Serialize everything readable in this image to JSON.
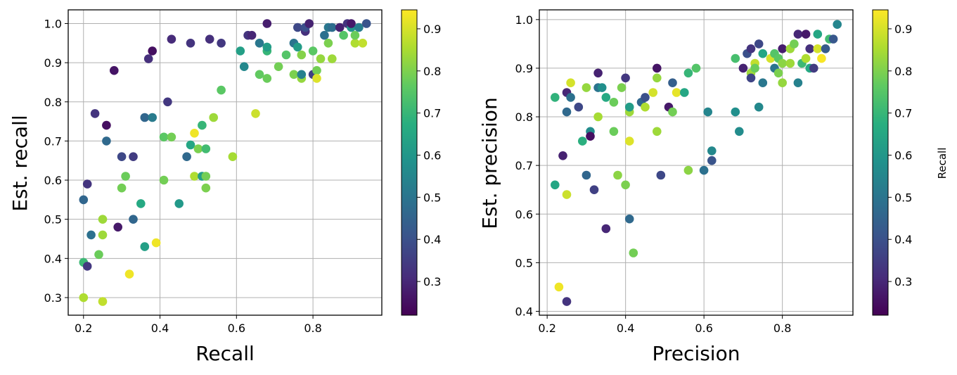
{
  "colormap": "viridis",
  "chart_data": [
    {
      "type": "scatter",
      "xlabel": "Recall",
      "ylabel": "Est. recall",
      "xlim": [
        0.16,
        0.98
      ],
      "ylim": [
        0.255,
        1.035
      ],
      "xticks": [
        "0.2",
        "0.4",
        "0.6",
        "0.8"
      ],
      "yticks": [
        "0.3",
        "0.4",
        "0.5",
        "0.6",
        "0.7",
        "0.8",
        "0.9",
        "1.0"
      ],
      "grid": true,
      "color_by": "Recall",
      "colorbar_ticks": [
        "0.3",
        "0.4",
        "0.5",
        "0.6",
        "0.7",
        "0.8",
        "0.9"
      ],
      "colorbar_range": [
        0.22,
        0.945
      ],
      "colorbar_label": "",
      "points": [
        [
          0.2,
          0.3,
          0.86
        ],
        [
          0.2,
          0.39,
          0.71
        ],
        [
          0.2,
          0.55,
          0.46
        ],
        [
          0.21,
          0.38,
          0.34
        ],
        [
          0.21,
          0.59,
          0.33
        ],
        [
          0.22,
          0.46,
          0.49
        ],
        [
          0.23,
          0.77,
          0.33
        ],
        [
          0.24,
          0.41,
          0.78
        ],
        [
          0.25,
          0.5,
          0.84
        ],
        [
          0.25,
          0.46,
          0.84
        ],
        [
          0.25,
          0.29,
          0.88
        ],
        [
          0.26,
          0.74,
          0.25
        ],
        [
          0.26,
          0.7,
          0.47
        ],
        [
          0.28,
          0.88,
          0.26
        ],
        [
          0.29,
          0.48,
          0.27
        ],
        [
          0.3,
          0.66,
          0.38
        ],
        [
          0.3,
          0.58,
          0.79
        ],
        [
          0.31,
          0.61,
          0.78
        ],
        [
          0.32,
          0.36,
          0.93
        ],
        [
          0.33,
          0.66,
          0.35
        ],
        [
          0.33,
          0.5,
          0.46
        ],
        [
          0.35,
          0.54,
          0.66
        ],
        [
          0.36,
          0.43,
          0.63
        ],
        [
          0.36,
          0.76,
          0.46
        ],
        [
          0.37,
          0.91,
          0.32
        ],
        [
          0.38,
          0.76,
          0.52
        ],
        [
          0.38,
          0.93,
          0.25
        ],
        [
          0.39,
          0.44,
          0.93
        ],
        [
          0.41,
          0.6,
          0.79
        ],
        [
          0.41,
          0.71,
          0.76
        ],
        [
          0.42,
          0.8,
          0.34
        ],
        [
          0.43,
          0.96,
          0.31
        ],
        [
          0.43,
          0.71,
          0.79
        ],
        [
          0.45,
          0.54,
          0.61
        ],
        [
          0.47,
          0.66,
          0.47
        ],
        [
          0.48,
          0.69,
          0.65
        ],
        [
          0.48,
          0.95,
          0.33
        ],
        [
          0.49,
          0.61,
          0.86
        ],
        [
          0.49,
          0.72,
          0.93
        ],
        [
          0.5,
          0.68,
          0.8
        ],
        [
          0.51,
          0.61,
          0.63
        ],
        [
          0.51,
          0.74,
          0.7
        ],
        [
          0.52,
          0.68,
          0.72
        ],
        [
          0.52,
          0.61,
          0.79
        ],
        [
          0.52,
          0.58,
          0.8
        ],
        [
          0.53,
          0.96,
          0.32
        ],
        [
          0.54,
          0.76,
          0.84
        ],
        [
          0.56,
          0.95,
          0.34
        ],
        [
          0.56,
          0.83,
          0.76
        ],
        [
          0.59,
          0.66,
          0.85
        ],
        [
          0.61,
          0.93,
          0.63
        ],
        [
          0.62,
          0.89,
          0.56
        ],
        [
          0.63,
          0.97,
          0.33
        ],
        [
          0.64,
          0.97,
          0.3
        ],
        [
          0.65,
          0.77,
          0.89
        ],
        [
          0.66,
          0.95,
          0.51
        ],
        [
          0.66,
          0.87,
          0.77
        ],
        [
          0.68,
          1.0,
          0.28
        ],
        [
          0.68,
          0.93,
          0.7
        ],
        [
          0.68,
          0.94,
          0.62
        ],
        [
          0.68,
          0.86,
          0.78
        ],
        [
          0.71,
          0.89,
          0.79
        ],
        [
          0.73,
          0.92,
          0.75
        ],
        [
          0.75,
          0.87,
          0.8
        ],
        [
          0.75,
          0.95,
          0.5
        ],
        [
          0.76,
          0.99,
          0.38
        ],
        [
          0.76,
          0.94,
          0.62
        ],
        [
          0.77,
          0.86,
          0.83
        ],
        [
          0.77,
          0.92,
          0.81
        ],
        [
          0.77,
          0.87,
          0.54
        ],
        [
          0.78,
          0.98,
          0.32
        ],
        [
          0.78,
          0.99,
          0.4
        ],
        [
          0.79,
          1.0,
          0.29
        ],
        [
          0.8,
          0.87,
          0.36
        ],
        [
          0.8,
          0.93,
          0.76
        ],
        [
          0.81,
          0.88,
          0.79
        ],
        [
          0.81,
          0.86,
          0.91
        ],
        [
          0.82,
          0.91,
          0.83
        ],
        [
          0.83,
          0.97,
          0.49
        ],
        [
          0.84,
          0.99,
          0.51
        ],
        [
          0.84,
          0.95,
          0.8
        ],
        [
          0.85,
          0.99,
          0.48
        ],
        [
          0.85,
          0.91,
          0.84
        ],
        [
          0.87,
          0.99,
          0.29
        ],
        [
          0.88,
          0.97,
          0.75
        ],
        [
          0.89,
          1.0,
          0.33
        ],
        [
          0.9,
          0.99,
          0.6
        ],
        [
          0.9,
          1.0,
          0.27
        ],
        [
          0.91,
          0.95,
          0.86
        ],
        [
          0.91,
          0.97,
          0.78
        ],
        [
          0.92,
          0.99,
          0.53
        ],
        [
          0.93,
          0.95,
          0.88
        ],
        [
          0.94,
          1.0,
          0.41
        ]
      ]
    },
    {
      "type": "scatter",
      "xlabel": "Precision",
      "ylabel": "Est. precision",
      "xlim": [
        0.18,
        0.98
      ],
      "ylim": [
        0.392,
        1.02
      ],
      "xticks": [
        "0.2",
        "0.4",
        "0.6",
        "0.8"
      ],
      "yticks": [
        "0.4",
        "0.5",
        "0.6",
        "0.7",
        "0.8",
        "0.9",
        "1.0"
      ],
      "grid": true,
      "color_by": "Recall",
      "colorbar_ticks": [
        "0.3",
        "0.4",
        "0.5",
        "0.6",
        "0.7",
        "0.8",
        "0.9"
      ],
      "colorbar_range": [
        0.22,
        0.945
      ],
      "colorbar_label": "Recall",
      "points": [
        [
          0.22,
          0.84,
          0.69
        ],
        [
          0.22,
          0.66,
          0.65
        ],
        [
          0.23,
          0.45,
          0.93
        ],
        [
          0.24,
          0.72,
          0.29
        ],
        [
          0.25,
          0.81,
          0.47
        ],
        [
          0.25,
          0.42,
          0.33
        ],
        [
          0.25,
          0.64,
          0.89
        ],
        [
          0.25,
          0.85,
          0.3
        ],
        [
          0.26,
          0.87,
          0.9
        ],
        [
          0.26,
          0.84,
          0.49
        ],
        [
          0.28,
          0.82,
          0.38
        ],
        [
          0.29,
          0.75,
          0.68
        ],
        [
          0.3,
          0.86,
          0.83
        ],
        [
          0.3,
          0.68,
          0.46
        ],
        [
          0.31,
          0.77,
          0.57
        ],
        [
          0.31,
          0.76,
          0.25
        ],
        [
          0.32,
          0.65,
          0.36
        ],
        [
          0.33,
          0.8,
          0.85
        ],
        [
          0.33,
          0.86,
          0.5
        ],
        [
          0.33,
          0.89,
          0.29
        ],
        [
          0.34,
          0.86,
          0.58
        ],
        [
          0.35,
          0.57,
          0.3
        ],
        [
          0.35,
          0.84,
          0.66
        ],
        [
          0.37,
          0.83,
          0.78
        ],
        [
          0.37,
          0.77,
          0.78
        ],
        [
          0.38,
          0.68,
          0.82
        ],
        [
          0.39,
          0.86,
          0.8
        ],
        [
          0.4,
          0.66,
          0.8
        ],
        [
          0.4,
          0.88,
          0.34
        ],
        [
          0.41,
          0.75,
          0.91
        ],
        [
          0.41,
          0.81,
          0.84
        ],
        [
          0.41,
          0.59,
          0.47
        ],
        [
          0.41,
          0.82,
          0.62
        ],
        [
          0.42,
          0.52,
          0.79
        ],
        [
          0.44,
          0.83,
          0.46
        ],
        [
          0.45,
          0.84,
          0.4
        ],
        [
          0.45,
          0.82,
          0.86
        ],
        [
          0.47,
          0.85,
          0.9
        ],
        [
          0.48,
          0.9,
          0.26
        ],
        [
          0.48,
          0.77,
          0.84
        ],
        [
          0.48,
          0.88,
          0.83
        ],
        [
          0.49,
          0.68,
          0.38
        ],
        [
          0.51,
          0.82,
          0.27
        ],
        [
          0.52,
          0.87,
          0.44
        ],
        [
          0.52,
          0.81,
          0.79
        ],
        [
          0.53,
          0.85,
          0.92
        ],
        [
          0.55,
          0.85,
          0.65
        ],
        [
          0.56,
          0.89,
          0.7
        ],
        [
          0.56,
          0.69,
          0.82
        ],
        [
          0.58,
          0.9,
          0.75
        ],
        [
          0.6,
          0.69,
          0.49
        ],
        [
          0.61,
          0.81,
          0.55
        ],
        [
          0.62,
          0.73,
          0.56
        ],
        [
          0.62,
          0.71,
          0.41
        ],
        [
          0.68,
          0.92,
          0.73
        ],
        [
          0.68,
          0.81,
          0.58
        ],
        [
          0.69,
          0.77,
          0.57
        ],
        [
          0.7,
          0.9,
          0.29
        ],
        [
          0.71,
          0.93,
          0.4
        ],
        [
          0.72,
          0.89,
          0.84
        ],
        [
          0.72,
          0.88,
          0.37
        ],
        [
          0.72,
          0.94,
          0.33
        ],
        [
          0.73,
          0.91,
          0.88
        ],
        [
          0.73,
          0.9,
          0.78
        ],
        [
          0.74,
          0.95,
          0.38
        ],
        [
          0.74,
          0.82,
          0.56
        ],
        [
          0.75,
          0.93,
          0.65
        ],
        [
          0.75,
          0.87,
          0.51
        ],
        [
          0.77,
          0.92,
          0.9
        ],
        [
          0.78,
          0.9,
          0.5
        ],
        [
          0.78,
          0.93,
          0.75
        ],
        [
          0.79,
          0.89,
          0.8
        ],
        [
          0.79,
          0.92,
          0.76
        ],
        [
          0.8,
          0.94,
          0.28
        ],
        [
          0.8,
          0.87,
          0.83
        ],
        [
          0.8,
          0.91,
          0.82
        ],
        [
          0.82,
          0.94,
          0.84
        ],
        [
          0.82,
          0.91,
          0.84
        ],
        [
          0.83,
          0.95,
          0.79
        ],
        [
          0.84,
          0.87,
          0.54
        ],
        [
          0.84,
          0.97,
          0.3
        ],
        [
          0.85,
          0.91,
          0.71
        ],
        [
          0.86,
          0.97,
          0.27
        ],
        [
          0.86,
          0.92,
          0.86
        ],
        [
          0.87,
          0.9,
          0.66
        ],
        [
          0.87,
          0.94,
          0.32
        ],
        [
          0.88,
          0.9,
          0.35
        ],
        [
          0.89,
          0.97,
          0.65
        ],
        [
          0.89,
          0.94,
          0.9
        ],
        [
          0.9,
          0.92,
          0.94
        ],
        [
          0.91,
          0.94,
          0.83
        ],
        [
          0.91,
          0.94,
          0.43
        ],
        [
          0.92,
          0.96,
          0.72
        ],
        [
          0.93,
          0.96,
          0.42
        ],
        [
          0.94,
          0.99,
          0.55
        ]
      ]
    }
  ]
}
